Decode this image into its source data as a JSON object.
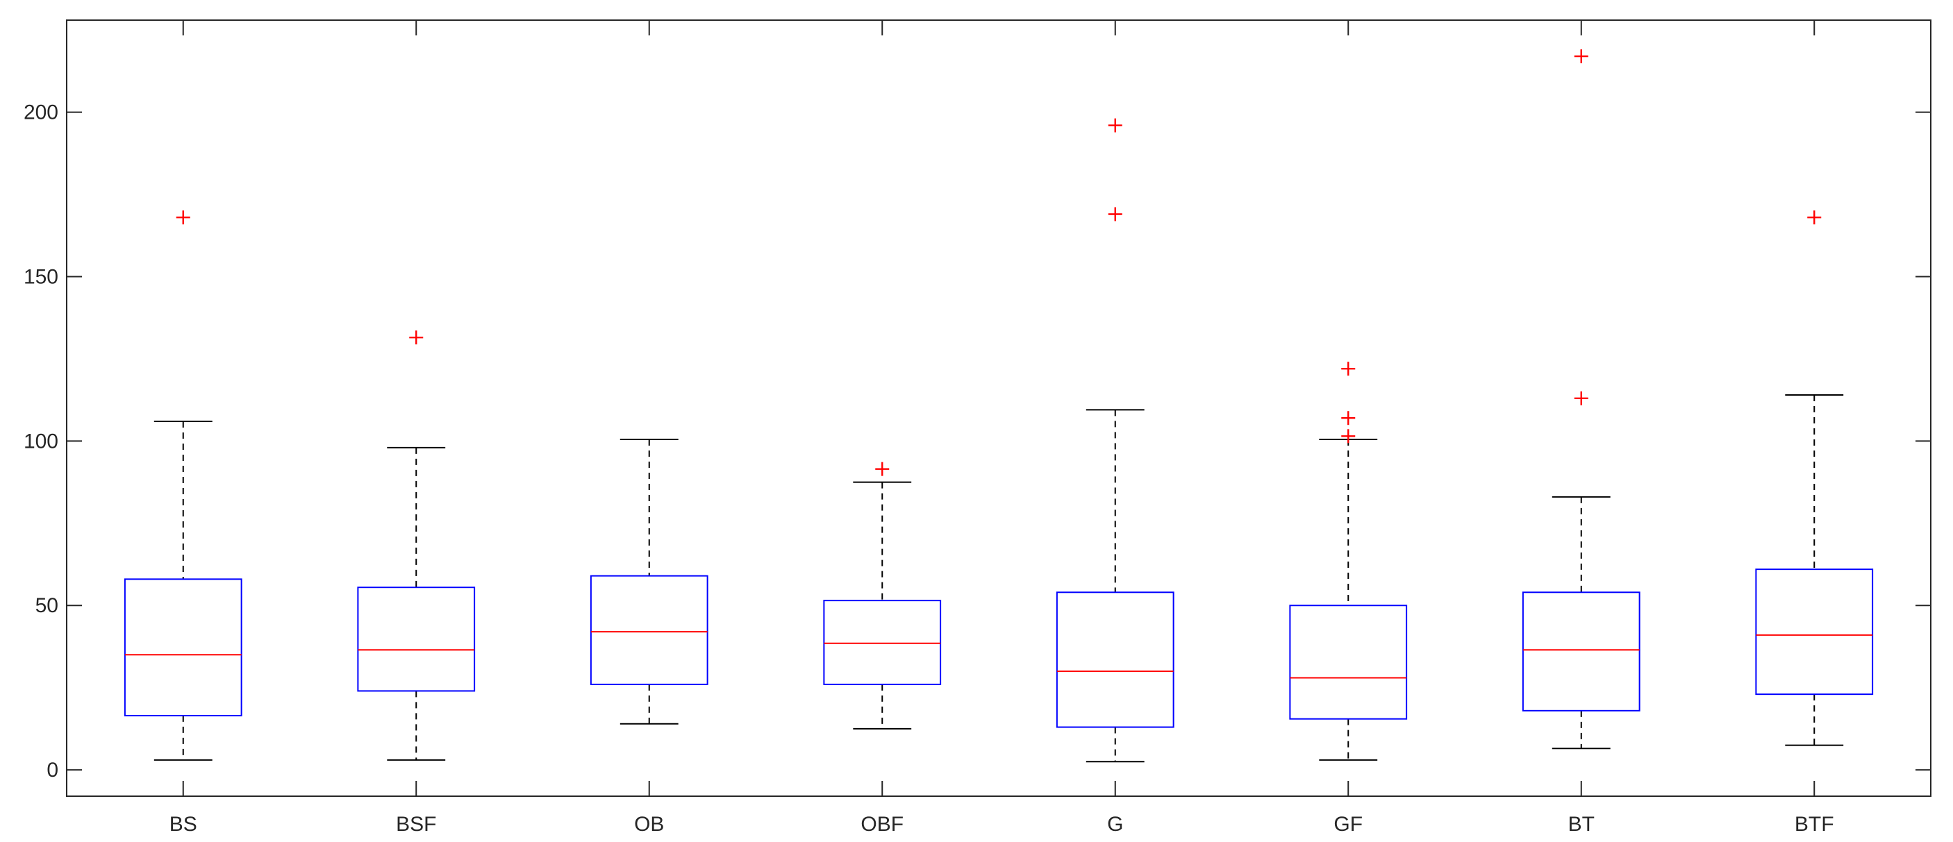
{
  "chart_data": {
    "type": "boxplot",
    "title": "",
    "xlabel": "",
    "ylabel": "",
    "ylim": [
      -8,
      228
    ],
    "y_ticks": [
      0,
      50,
      100,
      150,
      200
    ],
    "grid": false,
    "colors": {
      "box": "#0000ff",
      "median": "#ff0000",
      "whisker": "#000000",
      "outlier": "#ff0000",
      "axis": "#262626"
    },
    "categories": [
      "BS",
      "BSF",
      "OB",
      "OBF",
      "G",
      "GF",
      "BT",
      "BTF"
    ],
    "boxes": [
      {
        "label": "BS",
        "whisker_low": 3,
        "q1": 16.5,
        "median": 35,
        "q3": 58,
        "whisker_high": 106,
        "outliers": [
          168
        ]
      },
      {
        "label": "BSF",
        "whisker_low": 3,
        "q1": 24,
        "median": 36.5,
        "q3": 55.5,
        "whisker_high": 98,
        "outliers": [
          131.5
        ]
      },
      {
        "label": "OB",
        "whisker_low": 14,
        "q1": 26,
        "median": 42,
        "q3": 59,
        "whisker_high": 100.5,
        "outliers": []
      },
      {
        "label": "OBF",
        "whisker_low": 12.5,
        "q1": 26,
        "median": 38.5,
        "q3": 51.5,
        "whisker_high": 87.5,
        "outliers": [
          91.5
        ]
      },
      {
        "label": "G",
        "whisker_low": 2.5,
        "q1": 13,
        "median": 30,
        "q3": 54,
        "whisker_high": 109.5,
        "outliers": [
          169,
          196
        ]
      },
      {
        "label": "GF",
        "whisker_low": 3,
        "q1": 15.5,
        "median": 28,
        "q3": 50,
        "whisker_high": 100.5,
        "outliers": [
          101.5,
          107,
          122
        ]
      },
      {
        "label": "BT",
        "whisker_low": 6.5,
        "q1": 18,
        "median": 36.5,
        "q3": 54,
        "whisker_high": 83,
        "outliers": [
          113,
          217
        ]
      },
      {
        "label": "BTF",
        "whisker_low": 7.5,
        "q1": 23,
        "median": 41,
        "q3": 61,
        "whisker_high": 114,
        "outliers": [
          168
        ]
      }
    ]
  }
}
